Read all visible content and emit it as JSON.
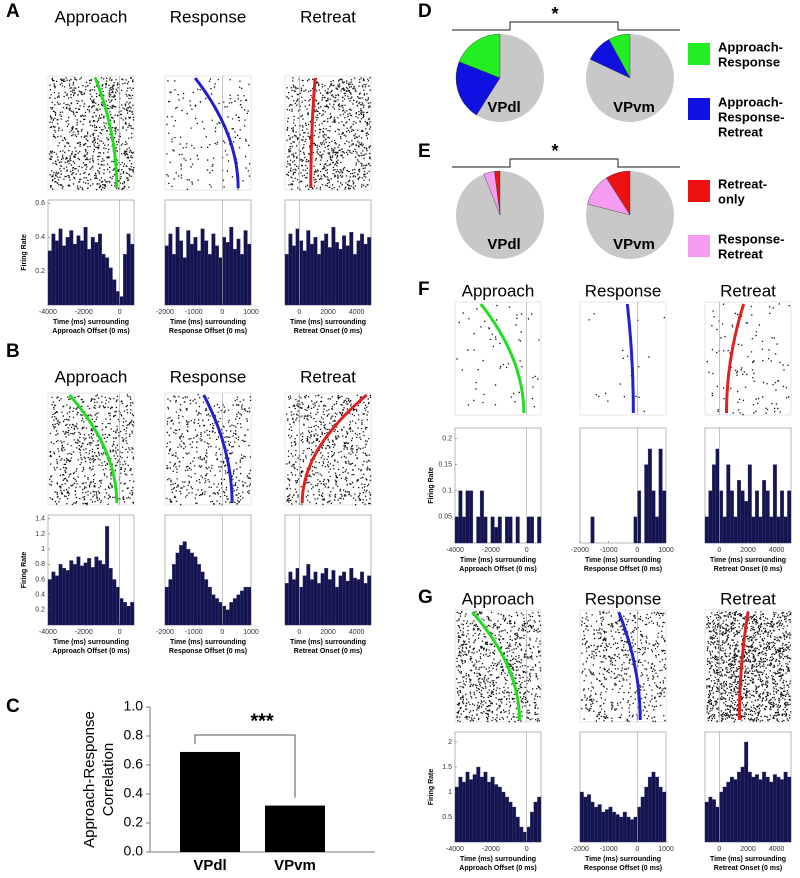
{
  "panel_letters": [
    "A",
    "B",
    "C",
    "D",
    "E",
    "F",
    "G"
  ],
  "raster_panels": [
    {
      "ylabel": "Firing Rate",
      "ylim": [
        0,
        0.62
      ],
      "yticks": [
        0.2,
        0.4,
        0.6
      ],
      "columns": [
        {
          "title": "Approach",
          "color": "#22dd22",
          "xlim": [
            -4000,
            800
          ],
          "xticks": [
            -4000,
            -2000,
            0
          ],
          "xlabel": [
            "Time (ms) surrounding",
            "Approach Offset (0 ms)"
          ],
          "values": [
            0.32,
            0.42,
            0.38,
            0.45,
            0.35,
            0.4,
            0.44,
            0.36,
            0.41,
            0.38,
            0.46,
            0.33,
            0.4,
            0.37,
            0.42,
            0.3,
            0.28,
            0.22,
            0.15,
            0.08,
            0.05,
            0.3,
            0.42,
            0.36
          ]
        },
        {
          "title": "Response",
          "color": "#2222cc",
          "xlim": [
            -2000,
            1000
          ],
          "xticks": [
            -2000,
            -1000,
            0,
            1000
          ],
          "xlabel": [
            "Time (ms) surrounding",
            "Response Offset (0 ms)"
          ],
          "values": [
            0.35,
            0.42,
            0.3,
            0.46,
            0.38,
            0.28,
            0.44,
            0.36,
            0.4,
            0.32,
            0.45,
            0.38,
            0.3,
            0.42,
            0.35,
            0.28,
            0.4,
            0.37,
            0.46,
            0.33,
            0.39,
            0.3,
            0.44,
            0.36
          ]
        },
        {
          "title": "Retreat",
          "color": "#dd2222",
          "xlim": [
            -1000,
            5000
          ],
          "xticks": [
            0,
            2000,
            4000
          ],
          "xlabel": [
            "Time (ms) surrounding",
            "Retreat Onset (0 ms)"
          ],
          "values": [
            0.3,
            0.42,
            0.35,
            0.45,
            0.38,
            0.32,
            0.44,
            0.36,
            0.4,
            0.3,
            0.38,
            0.42,
            0.34,
            0.46,
            0.37,
            0.33,
            0.41,
            0.35,
            0.43,
            0.3,
            0.38,
            0.42,
            0.36,
            0.4
          ]
        }
      ]
    },
    {
      "ylabel": "Firing Rate",
      "ylim": [
        0,
        1.45
      ],
      "yticks": [
        0.2,
        0.4,
        0.6,
        0.8,
        1,
        1.2,
        1.4
      ],
      "columns": [
        {
          "title": "Approach",
          "color": "#22dd22",
          "xlim": [
            -4000,
            800
          ],
          "xticks": [
            -4000,
            -2000,
            0
          ],
          "xlabel": [
            "Time (ms) surrounding",
            "Approach Offset (0 ms)"
          ],
          "values": [
            0.6,
            0.7,
            0.65,
            0.8,
            0.75,
            0.72,
            0.85,
            0.8,
            0.9,
            0.78,
            0.82,
            0.88,
            0.76,
            0.9,
            0.85,
            0.8,
            1.3,
            0.75,
            0.6,
            0.5,
            0.35,
            0.3,
            0.25,
            0.3
          ]
        },
        {
          "title": "Response",
          "color": "#2222cc",
          "xlim": [
            -2000,
            1000
          ],
          "xticks": [
            -2000,
            -1000,
            0,
            1000
          ],
          "xlabel": [
            "Time (ms) surrounding",
            "Response Offset (0 ms)"
          ],
          "values": [
            0.5,
            0.6,
            0.8,
            0.95,
            1.05,
            1.1,
            1.0,
            0.95,
            0.9,
            0.8,
            0.7,
            0.6,
            0.5,
            0.4,
            0.35,
            0.3,
            0.25,
            0.2,
            0.3,
            0.35,
            0.4,
            0.45,
            0.5,
            0.5
          ]
        },
        {
          "title": "Retreat",
          "color": "#dd2222",
          "xlim": [
            -1000,
            5000
          ],
          "xticks": [
            0,
            2000,
            4000
          ],
          "xlabel": [
            "Time (ms) surrounding",
            "Retreat Onset (0 ms)"
          ],
          "values": [
            0.55,
            0.7,
            0.6,
            0.75,
            0.5,
            0.65,
            0.8,
            0.6,
            0.7,
            0.55,
            0.68,
            0.75,
            0.6,
            0.72,
            0.5,
            0.65,
            0.7,
            0.58,
            0.75,
            0.62,
            0.6,
            0.7,
            0.55,
            0.65
          ]
        }
      ]
    },
    {
      "ylabel": "Firing Rate",
      "ylim": [
        0,
        0.22
      ],
      "yticks": [
        0.05,
        0.1,
        0.15,
        0.2
      ],
      "columns": [
        {
          "title": "Approach",
          "color": "#22dd22",
          "xlim": [
            -4000,
            800
          ],
          "xticks": [
            -4000,
            -2000,
            0
          ],
          "xlabel": [
            "Time (ms) surrounding",
            "Approach Offset (0 ms)"
          ],
          "values": [
            0.05,
            0.1,
            0.05,
            0.1,
            0.1,
            0,
            0.05,
            0.1,
            0.05,
            0,
            0.05,
            0.03,
            0.05,
            0,
            0.05,
            0.05,
            0,
            0.05,
            0,
            0,
            0.05,
            0.05,
            0,
            0.05
          ]
        },
        {
          "title": "Response",
          "color": "#2222cc",
          "xlim": [
            -2000,
            1000
          ],
          "xticks": [
            -2000,
            -1000,
            0,
            1000
          ],
          "xlabel": [
            "Time (ms) surrounding",
            "Response Offset (0 ms)"
          ],
          "values": [
            0,
            0,
            0,
            0.05,
            0,
            0,
            0,
            0,
            0,
            0,
            0,
            0,
            0,
            0,
            0,
            0.05,
            0.1,
            0,
            0.15,
            0.18,
            0.1,
            0.05,
            0.18,
            0.1
          ]
        },
        {
          "title": "Retreat",
          "color": "#dd2222",
          "xlim": [
            -1000,
            5000
          ],
          "xticks": [
            0,
            2000,
            4000
          ],
          "xlabel": [
            "Time (ms) surrounding",
            "Retreat Onset (0 ms)"
          ],
          "values": [
            0.05,
            0.1,
            0.15,
            0.18,
            0.1,
            0.05,
            0.15,
            0.1,
            0.05,
            0.12,
            0.1,
            0.08,
            0.15,
            0.05,
            0.1,
            0.05,
            0.12,
            0.1,
            0.05,
            0.15,
            0.05,
            0.1,
            0.05,
            0.1
          ]
        }
      ]
    },
    {
      "ylabel": "Firing Rate",
      "ylim": [
        0,
        2.2
      ],
      "yticks": [
        0.5,
        1,
        1.5,
        2
      ],
      "columns": [
        {
          "title": "Approach",
          "color": "#22dd22",
          "xlim": [
            -4000,
            800
          ],
          "xticks": [
            -4000,
            -2000,
            0
          ],
          "xlabel": [
            "Time (ms) surrounding",
            "Approach Offset (0 ms)"
          ],
          "values": [
            1.1,
            1.3,
            1.2,
            1.4,
            1.25,
            1.35,
            1.5,
            1.3,
            1.4,
            1.2,
            1.3,
            1.15,
            1.1,
            1.0,
            0.9,
            0.8,
            0.7,
            0.5,
            0.3,
            0.2,
            0.3,
            0.6,
            0.8,
            0.9
          ]
        },
        {
          "title": "Response",
          "color": "#2222cc",
          "xlim": [
            -2000,
            1000
          ],
          "xticks": [
            -2000,
            -1000,
            0,
            1000
          ],
          "xlabel": [
            "Time (ms) surrounding",
            "Response Offset (0 ms)"
          ],
          "values": [
            1.0,
            0.9,
            0.95,
            0.8,
            0.7,
            0.75,
            0.6,
            0.65,
            0.7,
            0.6,
            0.55,
            0.5,
            0.6,
            0.5,
            0.45,
            0.5,
            0.7,
            0.9,
            1.1,
            1.3,
            1.4,
            1.3,
            1.1,
            1.0
          ]
        },
        {
          "title": "Retreat",
          "color": "#dd2222",
          "xlim": [
            -1000,
            5000
          ],
          "xticks": [
            0,
            2000,
            4000
          ],
          "xlabel": [
            "Time (ms) surrounding",
            "Retreat Onset (0 ms)"
          ],
          "values": [
            0.8,
            0.9,
            0.85,
            0.7,
            1.0,
            1.1,
            1.2,
            1.3,
            1.25,
            1.4,
            1.5,
            2.0,
            1.4,
            1.3,
            1.35,
            1.25,
            1.4,
            1.3,
            1.2,
            1.35,
            1.3,
            1.25,
            1.4,
            1.3
          ]
        }
      ]
    }
  ],
  "correlation_chart": {
    "type": "bar",
    "ylabel": [
      "Approach-Response",
      "Correlation"
    ],
    "categories": [
      "VPdl",
      "VPvm"
    ],
    "values": [
      0.69,
      0.32
    ],
    "color": "#000000",
    "ylim": [
      0,
      1.0
    ],
    "yticks": [
      {
        "value": 0,
        "label": "0.0"
      },
      {
        "value": 0.2,
        "label": "0.2"
      },
      {
        "value": 0.4,
        "label": "0.4"
      },
      {
        "value": 0.6,
        "label": "0.6"
      },
      {
        "value": 0.8,
        "label": "0.8"
      },
      {
        "value": 1.0,
        "label": "1.0"
      }
    ],
    "significance": "***"
  },
  "pie_rows": [
    {
      "type": "pie",
      "significance": "*",
      "background": "#c8c8c8",
      "pies": [
        {
          "label": "VPdl",
          "values": [
            19,
            22
          ]
        },
        {
          "label": "VPvm",
          "values": [
            8,
            10
          ]
        }
      ],
      "legend": [
        {
          "name": [
            "Approach-",
            "Response"
          ],
          "color": "#22ee22"
        },
        {
          "name": [
            "Approach-",
            "Response-",
            "Retreat"
          ],
          "color": "#1010e0"
        }
      ]
    },
    {
      "type": "pie",
      "significance": "*",
      "background": "#c8c8c8",
      "pies": [
        {
          "label": "VPdl",
          "values": [
            2,
            4
          ]
        },
        {
          "label": "VPvm",
          "values": [
            9,
            12
          ]
        }
      ],
      "legend": [
        {
          "name": [
            "Retreat-",
            "only"
          ],
          "color": "#ee1111"
        },
        {
          "name": [
            "Response-",
            "Retreat"
          ],
          "color": "#f49cf0"
        }
      ]
    }
  ]
}
